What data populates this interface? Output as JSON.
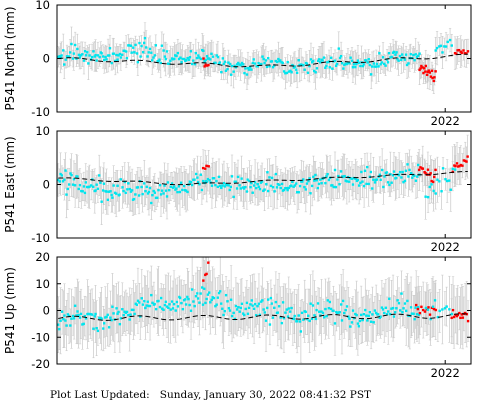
{
  "chart_data": [
    {
      "type": "scatter",
      "ylabel": "P541 North (mm)",
      "ylim": [
        -10,
        10
      ],
      "yticks": [
        -10,
        0,
        10
      ],
      "xticks": [
        {
          "value": 2022.0,
          "label": "2022"
        }
      ],
      "xlim": [
        2015.98,
        2022.4
      ],
      "trend": [
        {
          "x": 2016.0,
          "y": 0.0
        },
        {
          "x": 2019.2,
          "y": -1.5
        },
        {
          "x": 2022.35,
          "y": 0.6
        }
      ],
      "seasonal_amplitude": 0.5,
      "series": [
        {
          "color": "#00e5ee",
          "x_range": [
            2016.0,
            2021.6
          ],
          "level_points": [
            [
              2016.0,
              0.3
            ],
            [
              2017.2,
              1.0
            ],
            [
              2018.0,
              0.0
            ],
            [
              2019.0,
              -1.5
            ],
            [
              2020.0,
              -1.0
            ],
            [
              2021.0,
              -0.8
            ],
            [
              2021.6,
              0.2
            ]
          ],
          "spread": 1.3,
          "count": 300
        },
        {
          "color": "#ff0000",
          "x_range": [
            2018.25,
            2018.33
          ],
          "level_points": [
            [
              2018.25,
              -1.5
            ],
            [
              2018.33,
              -2.0
            ]
          ],
          "spread": 0.6,
          "count": 5
        },
        {
          "color": "#00e5ee",
          "x_range": [
            2021.85,
            2022.1
          ],
          "level_points": [
            [
              2021.85,
              1.8
            ],
            [
              2022.1,
              2.5
            ]
          ],
          "spread": 0.8,
          "count": 10
        },
        {
          "color": "#ff0000",
          "x_range": [
            2021.6,
            2021.85
          ],
          "level_points": [
            [
              2021.6,
              -1.2
            ],
            [
              2021.85,
              -2.8
            ]
          ],
          "spread": 1.2,
          "count": 18
        },
        {
          "color": "#ff0000",
          "x_range": [
            2022.15,
            2022.35
          ],
          "level_points": [
            [
              2022.15,
              0.8
            ],
            [
              2022.35,
              0.6
            ]
          ],
          "spread": 0.5,
          "count": 10
        }
      ],
      "error_bar_size": 2.2
    },
    {
      "type": "scatter",
      "ylabel": "P541 East (mm)",
      "ylim": [
        -10,
        10
      ],
      "yticks": [
        -10,
        0,
        10
      ],
      "xticks": [
        {
          "value": 2022.0,
          "label": "2022"
        }
      ],
      "xlim": [
        2015.98,
        2022.4
      ],
      "trend": [
        {
          "x": 2016.0,
          "y": 1.2
        },
        {
          "x": 2018.0,
          "y": 0.0
        },
        {
          "x": 2022.35,
          "y": 2.3
        }
      ],
      "seasonal_amplitude": 0.3,
      "series": [
        {
          "color": "#00e5ee",
          "x_range": [
            2016.0,
            2021.6
          ],
          "level_points": [
            [
              2016.0,
              1.0
            ],
            [
              2016.8,
              -0.8
            ],
            [
              2017.5,
              -1.5
            ],
            [
              2018.3,
              0.5
            ],
            [
              2019.5,
              -0.5
            ],
            [
              2020.5,
              1.2
            ],
            [
              2021.6,
              2.0
            ]
          ],
          "spread": 1.6,
          "count": 300
        },
        {
          "color": "#ff0000",
          "x_range": [
            2018.25,
            2018.33
          ],
          "level_points": [
            [
              2018.25,
              2.5
            ],
            [
              2018.33,
              3.0
            ]
          ],
          "spread": 0.5,
          "count": 4
        },
        {
          "color": "#ff0000",
          "x_range": [
            2021.6,
            2021.85
          ],
          "level_points": [
            [
              2021.6,
              2.5
            ],
            [
              2021.85,
              1.8
            ]
          ],
          "spread": 1.0,
          "count": 14
        },
        {
          "color": "#00e5ee",
          "x_range": [
            2021.7,
            2022.15
          ],
          "level_points": [
            [
              2021.7,
              -0.5
            ],
            [
              2022.15,
              0.8
            ]
          ],
          "spread": 2.0,
          "count": 16
        },
        {
          "color": "#ff0000",
          "x_range": [
            2022.12,
            2022.35
          ],
          "level_points": [
            [
              2022.12,
              3.0
            ],
            [
              2022.35,
              4.0
            ]
          ],
          "spread": 0.8,
          "count": 12
        }
      ],
      "error_bar_size": 3.0
    },
    {
      "type": "scatter",
      "ylabel": "P541 Up (mm)",
      "ylim": [
        -20,
        20
      ],
      "yticks": [
        -20,
        -10,
        0,
        10,
        20
      ],
      "xticks": [
        {
          "value": 2022.0,
          "label": "2022"
        }
      ],
      "xlim": [
        2015.98,
        2022.4
      ],
      "trend": [
        {
          "x": 2016.0,
          "y": -3.0
        },
        {
          "x": 2022.35,
          "y": -2.0
        }
      ],
      "seasonal_amplitude": 1.6,
      "series": [
        {
          "color": "#00e5ee",
          "x_range": [
            2016.0,
            2021.6
          ],
          "level_points": [
            [
              2016.0,
              -4.0
            ],
            [
              2017.0,
              -2.0
            ],
            [
              2017.6,
              3.0
            ],
            [
              2018.0,
              4.0
            ],
            [
              2018.6,
              3.0
            ],
            [
              2019.4,
              -1.0
            ],
            [
              2020.0,
              -1.0
            ],
            [
              2021.0,
              -2.0
            ],
            [
              2021.6,
              1.0
            ]
          ],
          "spread": 3.5,
          "count": 300
        },
        {
          "color": "#ff0000",
          "x_range": [
            2018.25,
            2018.33
          ],
          "level_points": [
            [
              2018.25,
              8.0
            ],
            [
              2018.33,
              16.0
            ]
          ],
          "spread": 2.0,
          "count": 4
        },
        {
          "color": "#ff0000",
          "x_range": [
            2021.55,
            2021.85
          ],
          "level_points": [
            [
              2021.55,
              1.0
            ],
            [
              2021.85,
              2.0
            ]
          ],
          "spread": 1.5,
          "count": 12
        },
        {
          "color": "#00e5ee",
          "x_range": [
            2021.7,
            2022.1
          ],
          "level_points": [
            [
              2021.7,
              3.0
            ],
            [
              2022.1,
              0.0
            ]
          ],
          "spread": 3.0,
          "count": 12
        },
        {
          "color": "#ff0000",
          "x_range": [
            2022.1,
            2022.35
          ],
          "level_points": [
            [
              2022.1,
              -3.0
            ],
            [
              2022.35,
              -4.0
            ]
          ],
          "spread": 1.5,
          "count": 14
        }
      ],
      "error_bar_size": 9.0
    }
  ],
  "colors": {
    "error_bar": "#c8c8c8",
    "trend_line": "#000000",
    "axis": "#000000"
  },
  "footer": {
    "label": "Plot Last Updated:",
    "timestamp": "Sunday, January 30, 2022 08:41:32 PST"
  }
}
